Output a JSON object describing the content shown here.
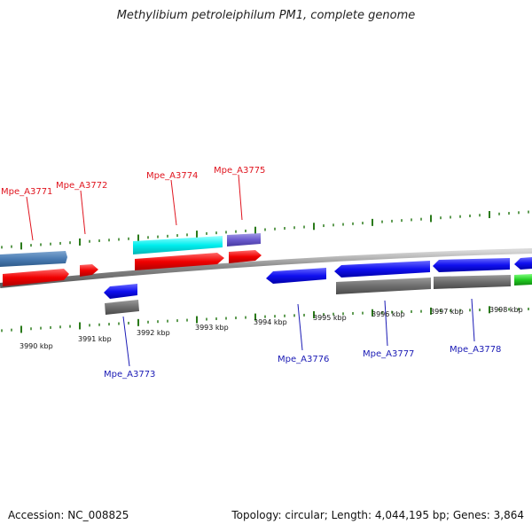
{
  "title": "Methylibium petroleiphilum PM1, complete genome",
  "footer": {
    "accession": "Accession: NC_008825",
    "topology": "Topology: circular; Length: 4,044,195 bp; Genes: 3,864"
  },
  "colors": {
    "top_strand_label": "#e0141e",
    "bottom_strand_label": "#1a1ab5",
    "tick": "#2a7a1a",
    "backbone": "#8a8a8a"
  },
  "kbp_labels": [
    "3990 kbp",
    "3991 kbp",
    "3992 kbp",
    "3993 kbp",
    "3994 kbp",
    "3995 kbp",
    "3996 kbp",
    "3997 kbp",
    "3998 kbp"
  ],
  "gene_labels": {
    "top": [
      "Mpe_A3771",
      "Mpe_A3772",
      "Mpe_A3774",
      "Mpe_A3775"
    ],
    "bottom": [
      "Mpe_A3773",
      "Mpe_A3776",
      "Mpe_A3777",
      "Mpe_A3778"
    ]
  }
}
